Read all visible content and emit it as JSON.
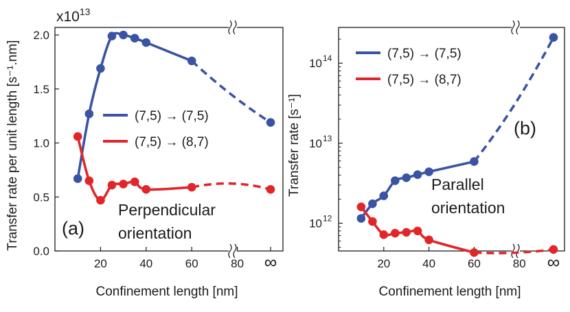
{
  "colors": {
    "blue": "#3a53a4",
    "red": "#e0262b",
    "axis": "#1a1a1a"
  },
  "chart_data": [
    {
      "type": "line",
      "panel_label": "(a)",
      "title": "",
      "xlabel": "Confinement length [nm]",
      "ylabel": "Transfer rate per unit length [s⁻¹.nm]",
      "multiplier": "x10",
      "multiplier_exp": "13",
      "annotation": [
        "Perpendicular",
        "orientation"
      ],
      "xlim": [
        0,
        100
      ],
      "ylim": [
        0,
        2.07
      ],
      "x_ticks": [
        20,
        40,
        60,
        80
      ],
      "x_tick_labels": [
        "20",
        "40",
        "60",
        "80"
      ],
      "x_infinity_label": "∞",
      "y_ticks": [
        0,
        0.5,
        1.0,
        1.5,
        2.0
      ],
      "y_tick_labels": [
        "0.0",
        "0.5",
        "1.0",
        "1.5",
        "2.0"
      ],
      "axis_break": true,
      "legend_position": "center-right",
      "series": [
        {
          "name": "(7,5) → (7,5)",
          "legend_left": "(7,5)",
          "legend_arrow": "→",
          "legend_right": "(7,5)",
          "color": "blue",
          "x": [
            10,
            15,
            20,
            25,
            30,
            35,
            40,
            60,
            "∞"
          ],
          "values": [
            0.67,
            1.27,
            1.69,
            1.99,
            2.0,
            1.97,
            1.93,
            1.76,
            1.19
          ]
        },
        {
          "name": "(7,5) → (8,7)",
          "legend_left": "(7,5)",
          "legend_arrow": "→",
          "legend_right": "(8,7)",
          "color": "red",
          "x": [
            10,
            15,
            20,
            25,
            30,
            35,
            40,
            60,
            "∞"
          ],
          "values": [
            1.06,
            0.65,
            0.47,
            0.61,
            0.62,
            0.64,
            0.57,
            0.59,
            0.57
          ]
        }
      ]
    },
    {
      "type": "line",
      "panel_label": "(b)",
      "title": "",
      "xlabel": "Confinement length [nm]",
      "ylabel": "Transfer rate [s⁻¹]",
      "yscale": "log",
      "annotation": [
        "Parallel",
        "orientation"
      ],
      "xlim": [
        0,
        100
      ],
      "ylim": [
        450000000000.0,
        280000000000000.0
      ],
      "x_ticks": [
        20,
        40,
        60,
        80
      ],
      "x_tick_labels": [
        "20",
        "40",
        "60",
        "80"
      ],
      "x_infinity_label": "∞",
      "y_ticks": [
        1000000000000.0,
        10000000000000.0,
        100000000000000.0
      ],
      "y_tick_labels": [
        "10",
        "10",
        "10"
      ],
      "y_tick_exponents": [
        "12",
        "13",
        "14"
      ],
      "axis_break": true,
      "legend_position": "top-left",
      "series": [
        {
          "name": "(7,5) → (7,5)",
          "legend_left": "(7,5)",
          "legend_arrow": "→",
          "legend_right": "(7,5)",
          "color": "blue",
          "x": [
            10,
            15,
            20,
            25,
            30,
            35,
            40,
            60,
            "∞"
          ],
          "values": [
            1150000000000.0,
            1750000000000.0,
            2200000000000.0,
            3400000000000.0,
            3700000000000.0,
            4050000000000.0,
            4400000000000.0,
            5900000000000.0,
            210000000000000.0
          ]
        },
        {
          "name": "(7,5) → (8,7)",
          "legend_left": "(7,5)",
          "legend_arrow": "→",
          "legend_right": "(8,7)",
          "color": "red",
          "x": [
            10,
            15,
            20,
            25,
            30,
            35,
            40,
            60,
            "∞"
          ],
          "values": [
            1600000000000.0,
            1050000000000.0,
            720000000000.0,
            750000000000.0,
            770000000000.0,
            800000000000.0,
            620000000000.0,
            430000000000.0,
            470000000000.0
          ]
        }
      ]
    }
  ]
}
